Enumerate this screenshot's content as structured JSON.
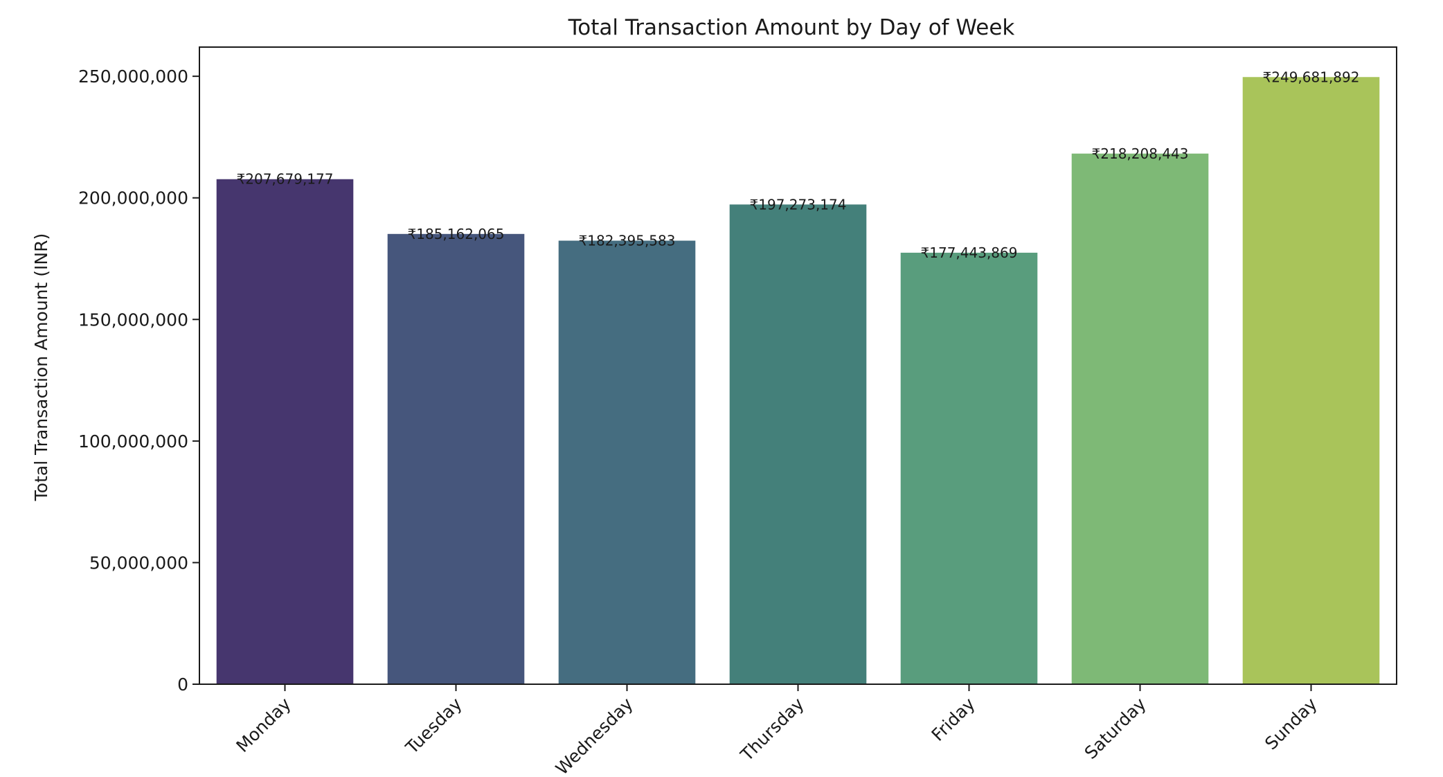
{
  "chart_data": {
    "type": "bar",
    "title": "Total Transaction Amount by Day of Week",
    "xlabel": "",
    "ylabel": "Total Transaction Amount (INR)",
    "categories": [
      "Monday",
      "Tuesday",
      "Wednesday",
      "Thursday",
      "Friday",
      "Saturday",
      "Sunday"
    ],
    "values": [
      207679177,
      185162065,
      182395583,
      197273174,
      177443869,
      218208443,
      249681892
    ],
    "value_labels": [
      "₹207,679,177",
      "₹185,162,065",
      "₹182,395,583",
      "₹197,273,174",
      "₹177,443,869",
      "₹218,208,443",
      "₹249,681,892"
    ],
    "colors": [
      "#46366e",
      "#46567c",
      "#456d80",
      "#44807a",
      "#599d7d",
      "#7eb976",
      "#a9c45a"
    ],
    "ylim": [
      0,
      262000000
    ],
    "yticks": [
      0,
      50000000,
      100000000,
      150000000,
      200000000,
      250000000
    ],
    "ytick_labels": [
      "0",
      "50,000,000",
      "100,000,000",
      "150,000,000",
      "200,000,000",
      "250,000,000"
    ],
    "grid": false,
    "legend": "none"
  }
}
